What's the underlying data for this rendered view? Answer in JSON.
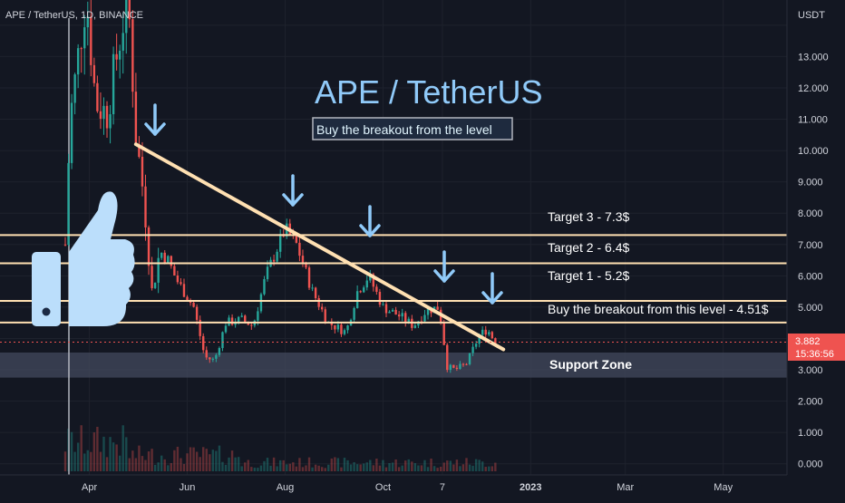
{
  "header": {
    "symbol": "APE / TetherUS, 1D, BINANCE"
  },
  "overlay": {
    "title": "APE / TetherUS",
    "subtitle": "Buy the breakout from the level",
    "thumb_icon": "thumbs-up-icon",
    "arrow_icon": "arrow-down-icon"
  },
  "annotations": {
    "target3": "Target 3 - 7.3$",
    "target2": "Target 2 - 6.4$",
    "target1": "Target 1 - 5.2$",
    "breakout": "Buy the breakout from this level - 4.51$",
    "support": "Support Zone"
  },
  "price_axis": {
    "currency": "USDT",
    "labels": [
      "13.000",
      "12.000",
      "11.000",
      "10.000",
      "9.000",
      "8.000",
      "7.000",
      "6.000",
      "5.000",
      "4.000",
      "3.000",
      "2.000",
      "1.000",
      "0.000"
    ],
    "current_price": "3.882",
    "countdown": "15:36:56"
  },
  "time_axis": {
    "labels": [
      "Apr",
      "Jun",
      "Aug",
      "Oct",
      "7",
      "2023",
      "Mar",
      "May"
    ]
  },
  "colors": {
    "background": "#131722",
    "up": "#26a69a",
    "down": "#ef5350",
    "level_line": "#ffe0b2",
    "trend_line": "#ffe0b2",
    "arrow": "#90caf9",
    "support_zone": "#434a5e",
    "price_tag": "#ef5350"
  },
  "chart_data": {
    "type": "candlestick",
    "title": "APE / TetherUS",
    "y_unit": "USDT",
    "ylim": [
      0,
      14
    ],
    "x_range": [
      "2022-03-17",
      "2023-05-31"
    ],
    "levels": [
      {
        "label": "Target 3 - 7.3$",
        "value": 7.3
      },
      {
        "label": "Target 2 - 6.4$",
        "value": 6.4
      },
      {
        "label": "Target 1 - 5.2$",
        "value": 5.2
      },
      {
        "label": "Buy the breakout from this level - 4.51$",
        "value": 4.51
      }
    ],
    "support_zone": {
      "label": "Support Zone",
      "from": 2.75,
      "to": 3.55
    },
    "trendline": {
      "start": {
        "date": "2022-04-30",
        "value": 10.2
      },
      "end": {
        "date": "2022-12-15",
        "value": 3.65
      }
    },
    "current_price": 3.882,
    "price_path": [
      {
        "date": "2022-03-17",
        "close": 7.0
      },
      {
        "date": "2022-03-20",
        "close": 11.0
      },
      {
        "date": "2022-03-25",
        "close": 13.0
      },
      {
        "date": "2022-03-30",
        "close": 15.0
      },
      {
        "date": "2022-04-05",
        "close": 11.5
      },
      {
        "date": "2022-04-12",
        "close": 11.2
      },
      {
        "date": "2022-04-18",
        "close": 13.0
      },
      {
        "date": "2022-04-25",
        "close": 15.0
      },
      {
        "date": "2022-04-30",
        "close": 10.5
      },
      {
        "date": "2022-05-05",
        "close": 8.5
      },
      {
        "date": "2022-05-10",
        "close": 5.5
      },
      {
        "date": "2022-05-15",
        "close": 6.8
      },
      {
        "date": "2022-05-20",
        "close": 6.5
      },
      {
        "date": "2022-05-25",
        "close": 5.9
      },
      {
        "date": "2022-06-05",
        "close": 5.0
      },
      {
        "date": "2022-06-12",
        "close": 3.4
      },
      {
        "date": "2022-06-18",
        "close": 3.3
      },
      {
        "date": "2022-06-25",
        "close": 4.5
      },
      {
        "date": "2022-07-05",
        "close": 4.6
      },
      {
        "date": "2022-07-12",
        "close": 4.4
      },
      {
        "date": "2022-07-20",
        "close": 6.0
      },
      {
        "date": "2022-08-01",
        "close": 7.5
      },
      {
        "date": "2022-08-08",
        "close": 7.0
      },
      {
        "date": "2022-08-18",
        "close": 5.5
      },
      {
        "date": "2022-08-28",
        "close": 4.5
      },
      {
        "date": "2022-09-08",
        "close": 4.2
      },
      {
        "date": "2022-09-15",
        "close": 5.5
      },
      {
        "date": "2022-09-22",
        "close": 6.0
      },
      {
        "date": "2022-10-01",
        "close": 5.0
      },
      {
        "date": "2022-10-12",
        "close": 4.7
      },
      {
        "date": "2022-10-20",
        "close": 4.4
      },
      {
        "date": "2022-10-28",
        "close": 4.9
      },
      {
        "date": "2022-11-05",
        "close": 5.0
      },
      {
        "date": "2022-11-10",
        "close": 3.1
      },
      {
        "date": "2022-11-15",
        "close": 3.0
      },
      {
        "date": "2022-11-22",
        "close": 3.2
      },
      {
        "date": "2022-11-30",
        "close": 4.1
      },
      {
        "date": "2022-12-05",
        "close": 4.3
      },
      {
        "date": "2022-12-10",
        "close": 3.882
      }
    ]
  }
}
